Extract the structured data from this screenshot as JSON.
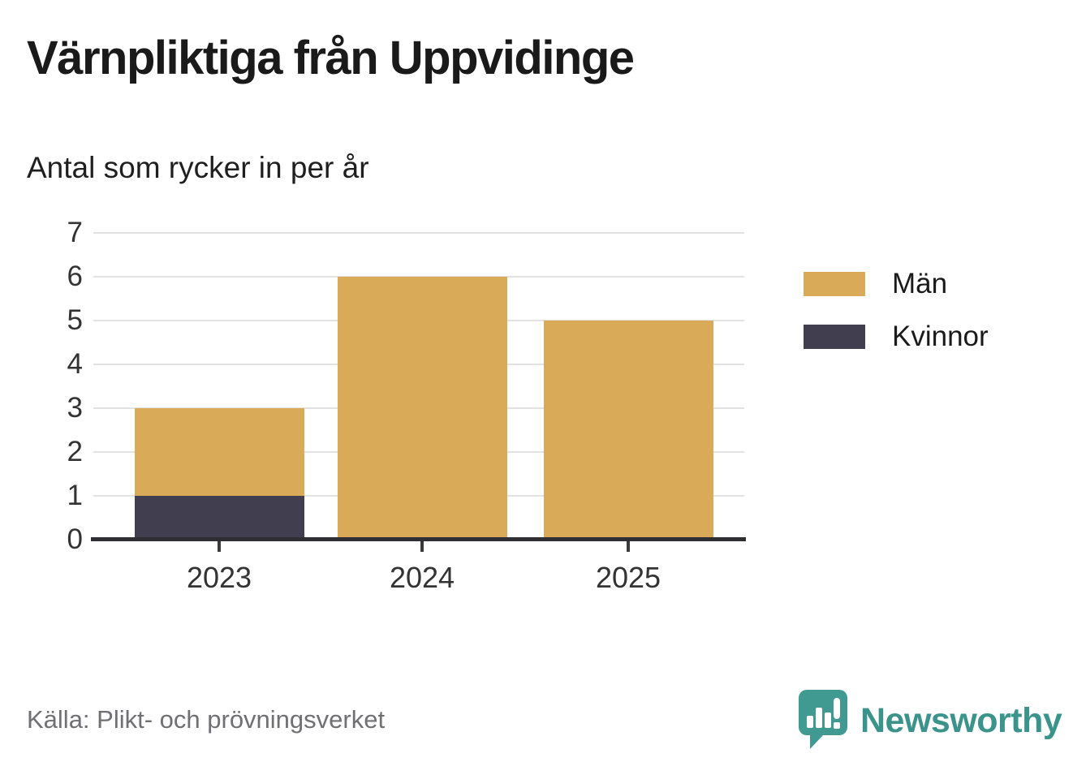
{
  "header": {
    "title": "Värnpliktiga från Uppvidinge",
    "subtitle": "Antal som rycker in per år"
  },
  "chart_data": {
    "type": "bar",
    "stacked": true,
    "title": "Värnpliktiga från Uppvidinge",
    "subtitle": "Antal som rycker in per år",
    "xlabel": "",
    "ylabel": "",
    "categories": [
      "2023",
      "2024",
      "2025"
    ],
    "series": [
      {
        "name": "Män",
        "color": "#d9ab58",
        "values": [
          2,
          6,
          5
        ]
      },
      {
        "name": "Kvinnor",
        "color": "#413e50",
        "values": [
          1,
          0,
          0
        ]
      }
    ],
    "stack_order_bottom_to_top": [
      "Kvinnor",
      "Män"
    ],
    "totals": [
      3,
      6,
      5
    ],
    "ylim": [
      0,
      7
    ],
    "yticks": [
      0,
      1,
      2,
      3,
      4,
      5,
      6,
      7
    ],
    "grid": true,
    "legend_position": "right"
  },
  "legend": {
    "items": [
      {
        "label": "Män",
        "color": "#d9ab58"
      },
      {
        "label": "Kvinnor",
        "color": "#413e50"
      }
    ]
  },
  "footer": {
    "source": "Källa: Plikt- och prövningsverket",
    "brand": "Newsworthy",
    "brand_color": "#3b948b"
  },
  "icons": {
    "logo": "newsworthy-speech-bubble-chart-icon"
  }
}
